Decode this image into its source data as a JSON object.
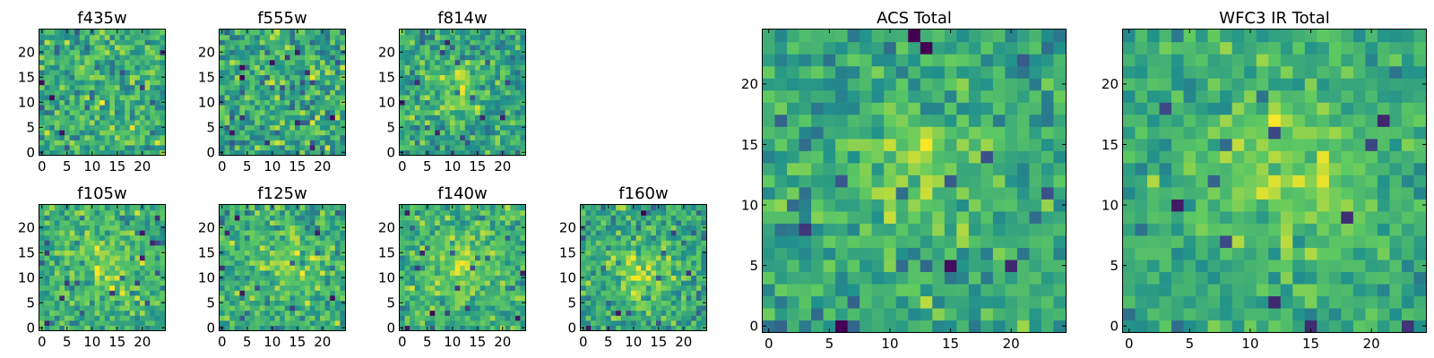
{
  "colors": {
    "colormap": [
      "#440154",
      "#3b528b",
      "#21918c",
      "#5ec962",
      "#fde725"
    ],
    "frame": "#000000"
  },
  "chart_data": [
    {
      "type": "heatmap",
      "title": "f435w",
      "rows": 25,
      "cols": 25,
      "xticks": [
        0,
        5,
        10,
        15,
        20
      ],
      "yticks": [
        0,
        5,
        10,
        15,
        20
      ],
      "xlim": [
        -0.5,
        24.5
      ],
      "ylim": [
        -0.5,
        24.5
      ],
      "seed": 11,
      "base": 0.6,
      "noise": 0.26,
      "center": [
        12,
        12
      ],
      "sigma": 8,
      "amp": 0.04
    },
    {
      "type": "heatmap",
      "title": "f555w",
      "rows": 25,
      "cols": 25,
      "xticks": [
        0,
        5,
        10,
        15,
        20
      ],
      "yticks": [
        0,
        5,
        10,
        15,
        20
      ],
      "xlim": [
        -0.5,
        24.5
      ],
      "ylim": [
        -0.5,
        24.5
      ],
      "seed": 23,
      "base": 0.58,
      "noise": 0.28,
      "center": [
        12,
        12
      ],
      "sigma": 8,
      "amp": 0.04
    },
    {
      "type": "heatmap",
      "title": "f814w",
      "rows": 25,
      "cols": 25,
      "xticks": [
        0,
        5,
        10,
        15,
        20
      ],
      "yticks": [
        0,
        5,
        10,
        15,
        20
      ],
      "xlim": [
        -0.5,
        24.5
      ],
      "ylim": [
        -0.5,
        24.5
      ],
      "seed": 37,
      "base": 0.58,
      "noise": 0.24,
      "center": [
        11,
        13
      ],
      "sigma": 4,
      "amp": 0.22
    },
    {
      "type": "heatmap",
      "title": "f105w",
      "rows": 25,
      "cols": 25,
      "xticks": [
        0,
        5,
        10,
        15,
        20
      ],
      "yticks": [
        0,
        5,
        10,
        15,
        20
      ],
      "xlim": [
        -0.5,
        24.5
      ],
      "ylim": [
        -0.5,
        24.5
      ],
      "seed": 41,
      "base": 0.62,
      "noise": 0.22,
      "center": [
        13,
        12
      ],
      "sigma": 5,
      "amp": 0.16
    },
    {
      "type": "heatmap",
      "title": "f125w",
      "rows": 25,
      "cols": 25,
      "xticks": [
        0,
        5,
        10,
        15,
        20
      ],
      "yticks": [
        0,
        5,
        10,
        15,
        20
      ],
      "xlim": [
        -0.5,
        24.5
      ],
      "ylim": [
        -0.5,
        24.5
      ],
      "seed": 53,
      "base": 0.62,
      "noise": 0.24,
      "center": [
        12,
        13
      ],
      "sigma": 5,
      "amp": 0.14
    },
    {
      "type": "heatmap",
      "title": "f140w",
      "rows": 25,
      "cols": 25,
      "xticks": [
        0,
        5,
        10,
        15,
        20
      ],
      "yticks": [
        0,
        5,
        10,
        15,
        20
      ],
      "xlim": [
        -0.5,
        24.5
      ],
      "ylim": [
        -0.5,
        24.5
      ],
      "seed": 67,
      "base": 0.63,
      "noise": 0.22,
      "center": [
        12,
        12
      ],
      "sigma": 5,
      "amp": 0.2
    },
    {
      "type": "heatmap",
      "title": "f160w",
      "rows": 25,
      "cols": 25,
      "xticks": [
        0,
        5,
        10,
        15,
        20
      ],
      "yticks": [
        0,
        5,
        10,
        15,
        20
      ],
      "xlim": [
        -0.5,
        24.5
      ],
      "ylim": [
        -0.5,
        24.5
      ],
      "seed": 79,
      "base": 0.6,
      "noise": 0.24,
      "center": [
        12,
        11
      ],
      "sigma": 4,
      "amp": 0.22
    },
    {
      "type": "heatmap",
      "title": "ACS Total",
      "rows": 25,
      "cols": 25,
      "xticks": [
        0,
        5,
        10,
        15,
        20
      ],
      "yticks": [
        0,
        5,
        10,
        15,
        20
      ],
      "xlim": [
        -0.5,
        24.5
      ],
      "ylim": [
        -0.5,
        24.5
      ],
      "seed": 97,
      "base": 0.58,
      "noise": 0.22,
      "center": [
        12,
        13
      ],
      "sigma": 4,
      "amp": 0.2
    },
    {
      "type": "heatmap",
      "title": "WFC3 IR Total",
      "rows": 25,
      "cols": 25,
      "xticks": [
        0,
        5,
        10,
        15,
        20
      ],
      "yticks": [
        0,
        5,
        10,
        15,
        20
      ],
      "xlim": [
        -0.5,
        24.5
      ],
      "ylim": [
        -0.5,
        24.5
      ],
      "seed": 113,
      "base": 0.6,
      "noise": 0.18,
      "center": [
        13,
        13
      ],
      "sigma": 5,
      "amp": 0.22
    }
  ]
}
